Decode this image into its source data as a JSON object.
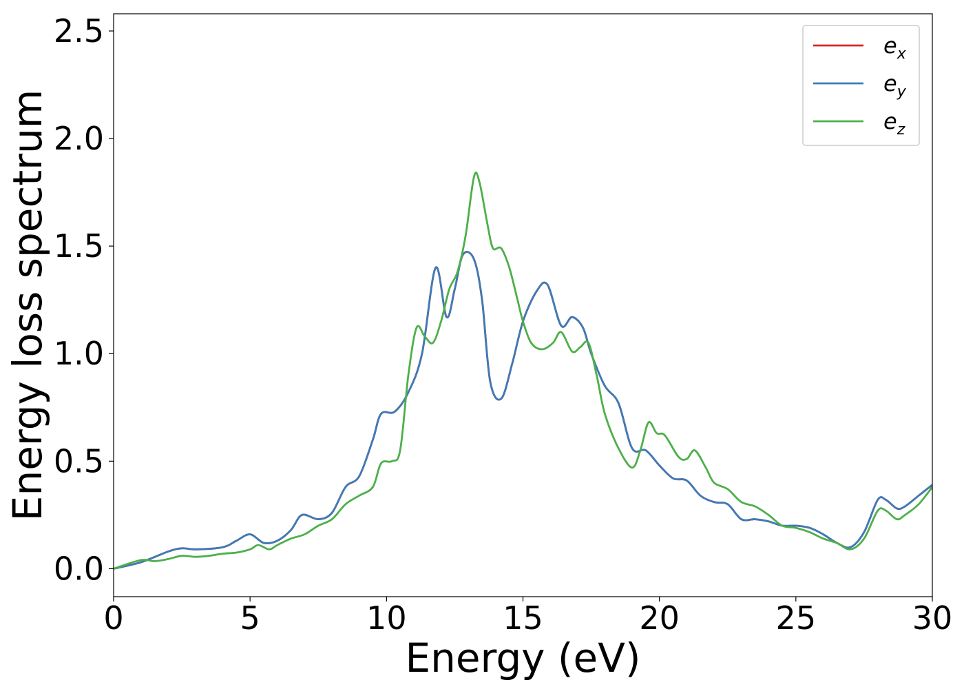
{
  "chart_data": {
    "type": "line",
    "title": "",
    "xlabel": "Energy (eV)",
    "ylabel": "Energy loss spectrum",
    "xlim": [
      0,
      30
    ],
    "ylim": [
      -0.13,
      2.58
    ],
    "xticks": [
      0,
      5,
      10,
      15,
      20,
      25,
      30
    ],
    "xtick_labels": [
      "0",
      "5",
      "10",
      "15",
      "20",
      "25",
      "30"
    ],
    "yticks": [
      0.0,
      0.5,
      1.0,
      1.5,
      2.0,
      2.5
    ],
    "ytick_labels": [
      "0.0",
      "0.5",
      "1.0",
      "1.5",
      "2.0",
      "2.5"
    ],
    "grid": false,
    "legend_position": "top-right",
    "series": [
      {
        "name": "e",
        "subscript": "x",
        "color": "#d62728",
        "points": [
          [
            0,
            0.0
          ],
          [
            1,
            0.03
          ],
          [
            2,
            0.08
          ],
          [
            2.5,
            0.095
          ],
          [
            3,
            0.09
          ],
          [
            4,
            0.1
          ],
          [
            4.5,
            0.13
          ],
          [
            5,
            0.16
          ],
          [
            5.5,
            0.12
          ],
          [
            6,
            0.13
          ],
          [
            6.5,
            0.18
          ],
          [
            6.9,
            0.25
          ],
          [
            7.5,
            0.23
          ],
          [
            8,
            0.26
          ],
          [
            8.5,
            0.38
          ],
          [
            9,
            0.43
          ],
          [
            9.5,
            0.6
          ],
          [
            9.8,
            0.72
          ],
          [
            10.3,
            0.73
          ],
          [
            10.8,
            0.82
          ],
          [
            11.3,
            1.0
          ],
          [
            11.8,
            1.4
          ],
          [
            12.2,
            1.17
          ],
          [
            12.5,
            1.3
          ],
          [
            12.8,
            1.46
          ],
          [
            13.2,
            1.44
          ],
          [
            13.5,
            1.25
          ],
          [
            13.8,
            0.87
          ],
          [
            14.2,
            0.79
          ],
          [
            14.6,
            0.95
          ],
          [
            15,
            1.15
          ],
          [
            15.5,
            1.29
          ],
          [
            15.9,
            1.32
          ],
          [
            16.4,
            1.13
          ],
          [
            16.8,
            1.17
          ],
          [
            17.2,
            1.12
          ],
          [
            17.5,
            1.0
          ],
          [
            18,
            0.85
          ],
          [
            18.5,
            0.77
          ],
          [
            19,
            0.56
          ],
          [
            19.5,
            0.55
          ],
          [
            20,
            0.48
          ],
          [
            20.5,
            0.42
          ],
          [
            21,
            0.41
          ],
          [
            21.5,
            0.34
          ],
          [
            22,
            0.31
          ],
          [
            22.5,
            0.3
          ],
          [
            23,
            0.23
          ],
          [
            23.5,
            0.23
          ],
          [
            24,
            0.22
          ],
          [
            24.5,
            0.2
          ],
          [
            25,
            0.2
          ],
          [
            25.5,
            0.19
          ],
          [
            26,
            0.16
          ],
          [
            26.5,
            0.12
          ],
          [
            27,
            0.1
          ],
          [
            27.5,
            0.17
          ],
          [
            28,
            0.32
          ],
          [
            28.3,
            0.32
          ],
          [
            28.7,
            0.28
          ],
          [
            29,
            0.29
          ],
          [
            29.5,
            0.34
          ],
          [
            30,
            0.39
          ]
        ]
      },
      {
        "name": "e",
        "subscript": "y",
        "color": "#3d7bb8",
        "points": [
          [
            0,
            0.0
          ],
          [
            1,
            0.03
          ],
          [
            2,
            0.08
          ],
          [
            2.5,
            0.095
          ],
          [
            3,
            0.09
          ],
          [
            4,
            0.1
          ],
          [
            4.5,
            0.13
          ],
          [
            5,
            0.16
          ],
          [
            5.5,
            0.12
          ],
          [
            6,
            0.13
          ],
          [
            6.5,
            0.18
          ],
          [
            6.9,
            0.25
          ],
          [
            7.5,
            0.23
          ],
          [
            8,
            0.26
          ],
          [
            8.5,
            0.38
          ],
          [
            9,
            0.43
          ],
          [
            9.5,
            0.6
          ],
          [
            9.8,
            0.72
          ],
          [
            10.3,
            0.73
          ],
          [
            10.8,
            0.82
          ],
          [
            11.3,
            1.0
          ],
          [
            11.8,
            1.4
          ],
          [
            12.2,
            1.17
          ],
          [
            12.5,
            1.3
          ],
          [
            12.8,
            1.46
          ],
          [
            13.2,
            1.44
          ],
          [
            13.5,
            1.25
          ],
          [
            13.8,
            0.87
          ],
          [
            14.2,
            0.79
          ],
          [
            14.6,
            0.95
          ],
          [
            15,
            1.15
          ],
          [
            15.5,
            1.29
          ],
          [
            15.9,
            1.32
          ],
          [
            16.4,
            1.13
          ],
          [
            16.8,
            1.17
          ],
          [
            17.2,
            1.12
          ],
          [
            17.5,
            1.0
          ],
          [
            18,
            0.85
          ],
          [
            18.5,
            0.77
          ],
          [
            19,
            0.56
          ],
          [
            19.5,
            0.55
          ],
          [
            20,
            0.48
          ],
          [
            20.5,
            0.42
          ],
          [
            21,
            0.41
          ],
          [
            21.5,
            0.34
          ],
          [
            22,
            0.31
          ],
          [
            22.5,
            0.3
          ],
          [
            23,
            0.23
          ],
          [
            23.5,
            0.23
          ],
          [
            24,
            0.22
          ],
          [
            24.5,
            0.2
          ],
          [
            25,
            0.2
          ],
          [
            25.5,
            0.19
          ],
          [
            26,
            0.16
          ],
          [
            26.5,
            0.12
          ],
          [
            27,
            0.1
          ],
          [
            27.5,
            0.17
          ],
          [
            28,
            0.32
          ],
          [
            28.3,
            0.32
          ],
          [
            28.7,
            0.28
          ],
          [
            29,
            0.29
          ],
          [
            29.5,
            0.34
          ],
          [
            30,
            0.39
          ]
        ]
      },
      {
        "name": "e",
        "subscript": "z",
        "color": "#4daf4a",
        "points": [
          [
            0,
            0.0
          ],
          [
            1,
            0.04
          ],
          [
            1.5,
            0.035
          ],
          [
            2,
            0.045
          ],
          [
            2.5,
            0.06
          ],
          [
            3,
            0.055
          ],
          [
            3.5,
            0.06
          ],
          [
            4,
            0.07
          ],
          [
            4.5,
            0.075
          ],
          [
            5,
            0.09
          ],
          [
            5.3,
            0.11
          ],
          [
            5.7,
            0.09
          ],
          [
            6,
            0.11
          ],
          [
            6.5,
            0.14
          ],
          [
            7,
            0.16
          ],
          [
            7.5,
            0.2
          ],
          [
            8,
            0.23
          ],
          [
            8.5,
            0.3
          ],
          [
            9,
            0.34
          ],
          [
            9.5,
            0.38
          ],
          [
            9.8,
            0.49
          ],
          [
            10.2,
            0.5
          ],
          [
            10.5,
            0.55
          ],
          [
            10.8,
            0.9
          ],
          [
            11.1,
            1.12
          ],
          [
            11.4,
            1.08
          ],
          [
            11.7,
            1.05
          ],
          [
            12,
            1.15
          ],
          [
            12.3,
            1.3
          ],
          [
            12.6,
            1.38
          ],
          [
            12.9,
            1.55
          ],
          [
            13.2,
            1.82
          ],
          [
            13.4,
            1.8
          ],
          [
            13.7,
            1.6
          ],
          [
            13.9,
            1.49
          ],
          [
            14.2,
            1.49
          ],
          [
            14.5,
            1.4
          ],
          [
            14.8,
            1.25
          ],
          [
            15,
            1.15
          ],
          [
            15.3,
            1.05
          ],
          [
            15.7,
            1.02
          ],
          [
            16.1,
            1.05
          ],
          [
            16.4,
            1.1
          ],
          [
            16.8,
            1.01
          ],
          [
            17.1,
            1.03
          ],
          [
            17.4,
            1.05
          ],
          [
            17.7,
            0.9
          ],
          [
            18,
            0.72
          ],
          [
            18.5,
            0.56
          ],
          [
            19,
            0.47
          ],
          [
            19.3,
            0.55
          ],
          [
            19.6,
            0.68
          ],
          [
            19.9,
            0.63
          ],
          [
            20.2,
            0.62
          ],
          [
            20.7,
            0.52
          ],
          [
            21,
            0.51
          ],
          [
            21.3,
            0.55
          ],
          [
            21.7,
            0.47
          ],
          [
            22,
            0.4
          ],
          [
            22.5,
            0.37
          ],
          [
            23,
            0.31
          ],
          [
            23.5,
            0.29
          ],
          [
            24,
            0.25
          ],
          [
            24.5,
            0.2
          ],
          [
            25,
            0.19
          ],
          [
            25.5,
            0.17
          ],
          [
            26,
            0.14
          ],
          [
            26.5,
            0.12
          ],
          [
            27,
            0.09
          ],
          [
            27.5,
            0.14
          ],
          [
            28,
            0.27
          ],
          [
            28.3,
            0.27
          ],
          [
            28.7,
            0.23
          ],
          [
            29,
            0.25
          ],
          [
            29.5,
            0.3
          ],
          [
            30,
            0.38
          ]
        ]
      }
    ]
  }
}
